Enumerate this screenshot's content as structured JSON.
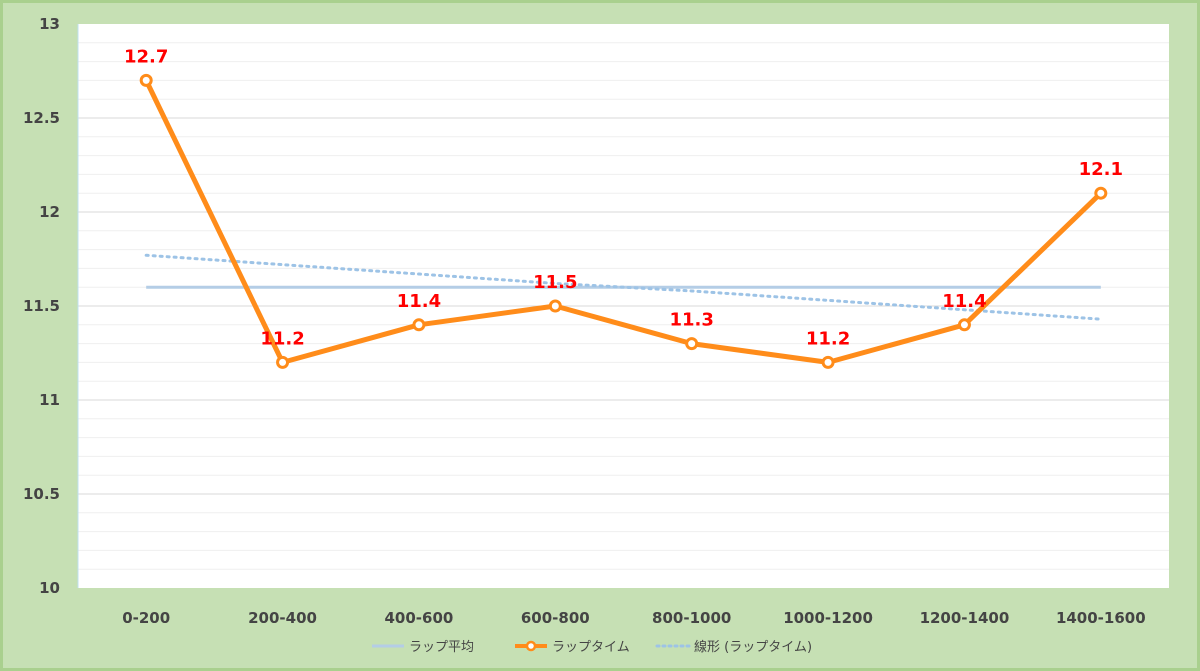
{
  "chart_data": {
    "type": "line",
    "categories": [
      "0-200",
      "200-400",
      "400-600",
      "600-800",
      "800-1000",
      "1000-1200",
      "1200-1400",
      "1400-1600"
    ],
    "ylim": [
      10,
      13
    ],
    "y_ticks": [
      "10",
      "10.5",
      "11",
      "11.5",
      "12",
      "12.5",
      "13"
    ],
    "grid": true,
    "legend_position": "bottom",
    "series": [
      {
        "name": "ラップ平均",
        "values": [
          11.6,
          11.6,
          11.6,
          11.6,
          11.6,
          11.6,
          11.6,
          11.6
        ],
        "color": "#b4cde6",
        "style": "solid"
      },
      {
        "name": "ラップタイム",
        "values": [
          12.7,
          11.2,
          11.4,
          11.5,
          11.3,
          11.2,
          11.4,
          12.1
        ],
        "labels": [
          "12.7",
          "11.2",
          "11.4",
          "11.5",
          "11.3",
          "11.2",
          "11.4",
          "12.1"
        ],
        "color": "#ff8c1a",
        "style": "solid-markers"
      },
      {
        "name": "線形 (ラップタイム)",
        "values": [
          11.77,
          11.72,
          11.67,
          11.62,
          11.58,
          11.53,
          11.48,
          11.43
        ],
        "color": "#9dc3e6",
        "style": "dotted"
      }
    ],
    "label_color": "#ff0000"
  }
}
